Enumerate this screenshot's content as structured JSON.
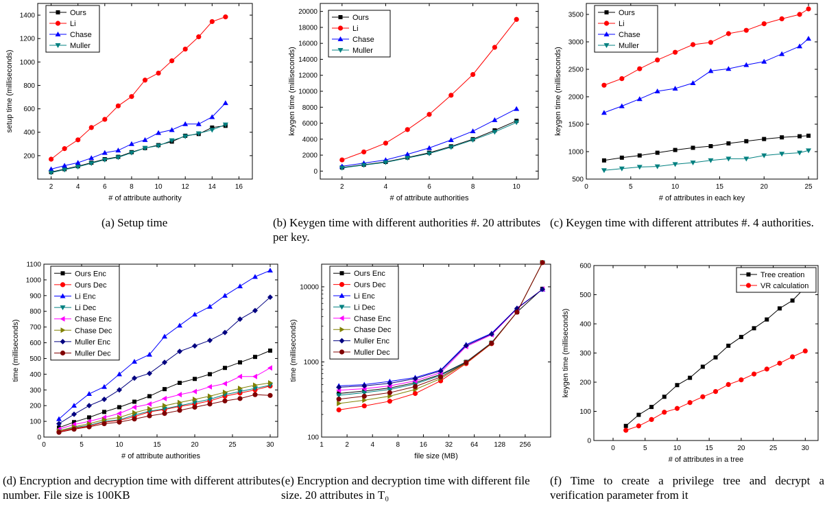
{
  "chart_data": [
    {
      "type": "line",
      "xlabel": "# of attribute authority",
      "ylabel": "setup time (milliseconds)",
      "xlim": [
        1,
        17
      ],
      "ylim": [
        0,
        1500
      ],
      "xticks": [
        2,
        4,
        6,
        8,
        10,
        12,
        14,
        16
      ],
      "yticks": [
        200,
        400,
        600,
        800,
        1000,
        1200,
        1400
      ],
      "legend_position": "top-left",
      "x": [
        2,
        3,
        4,
        5,
        6,
        7,
        8,
        9,
        10,
        11,
        12,
        13,
        14,
        15
      ],
      "series": [
        {
          "name": "Ours",
          "color": "#000000",
          "marker": "square",
          "values": [
            60,
            85,
            110,
            140,
            170,
            190,
            230,
            265,
            290,
            320,
            370,
            385,
            440,
            455
          ]
        },
        {
          "name": "Li",
          "color": "#ff0000",
          "marker": "circle",
          "values": [
            170,
            260,
            335,
            440,
            510,
            625,
            705,
            845,
            905,
            1010,
            1110,
            1215,
            1345,
            1385
          ]
        },
        {
          "name": "Chase",
          "color": "#0000ff",
          "marker": "triangle-up",
          "values": [
            85,
            115,
            140,
            180,
            225,
            245,
            300,
            335,
            395,
            420,
            470,
            470,
            530,
            650
          ]
        },
        {
          "name": "Muller",
          "color": "#008080",
          "marker": "triangle-down",
          "values": [
            55,
            80,
            105,
            135,
            165,
            185,
            225,
            265,
            285,
            330,
            365,
            390,
            420,
            465
          ]
        }
      ]
    },
    {
      "type": "line",
      "xlabel": "# of attribute authorities",
      "ylabel": "keygen time (milliseconds)",
      "xlim": [
        1,
        11
      ],
      "ylim": [
        -1000,
        21000
      ],
      "xticks": [
        2,
        4,
        6,
        8,
        10
      ],
      "yticks": [
        0,
        2000,
        4000,
        6000,
        8000,
        10000,
        12000,
        14000,
        16000,
        18000,
        20000
      ],
      "legend_position": "top-left",
      "x": [
        2,
        3,
        4,
        5,
        6,
        7,
        8,
        9,
        10
      ],
      "series": [
        {
          "name": "Ours",
          "color": "#000000",
          "marker": "square",
          "values": [
            450,
            800,
            1150,
            1700,
            2300,
            3100,
            4000,
            5100,
            6300
          ]
        },
        {
          "name": "Li",
          "color": "#ff0000",
          "marker": "circle",
          "values": [
            1400,
            2400,
            3500,
            5200,
            7100,
            9500,
            12100,
            15500,
            19000
          ]
        },
        {
          "name": "Chase",
          "color": "#0000ff",
          "marker": "triangle-up",
          "values": [
            600,
            1000,
            1400,
            2100,
            2900,
            3900,
            5000,
            6400,
            7800
          ]
        },
        {
          "name": "Muller",
          "color": "#008080",
          "marker": "triangle-down",
          "values": [
            400,
            750,
            1100,
            1650,
            2200,
            3000,
            3900,
            4900,
            6100
          ]
        }
      ]
    },
    {
      "type": "line",
      "xlabel": "# of attributes in each key",
      "ylabel": "keygen time (milliseconds)",
      "xlim": [
        0,
        26
      ],
      "ylim": [
        500,
        3700
      ],
      "xticks": [
        0,
        5,
        10,
        15,
        20,
        25
      ],
      "yticks": [
        500,
        1000,
        1500,
        2000,
        2500,
        3000,
        3500
      ],
      "legend_position": "top-left",
      "x": [
        2,
        4,
        6,
        8,
        10,
        12,
        14,
        16,
        18,
        20,
        22,
        24,
        25
      ],
      "series": [
        {
          "name": "Ours",
          "color": "#000000",
          "marker": "square",
          "values": [
            840,
            890,
            930,
            980,
            1030,
            1070,
            1100,
            1150,
            1190,
            1230,
            1260,
            1280,
            1290
          ]
        },
        {
          "name": "Li",
          "color": "#ff0000",
          "marker": "circle",
          "values": [
            2210,
            2330,
            2510,
            2670,
            2810,
            2950,
            2990,
            3150,
            3210,
            3330,
            3420,
            3500,
            3600
          ]
        },
        {
          "name": "Chase",
          "color": "#0000ff",
          "marker": "triangle-up",
          "values": [
            1710,
            1830,
            1960,
            2100,
            2150,
            2250,
            2470,
            2510,
            2580,
            2640,
            2780,
            2920,
            3060
          ]
        },
        {
          "name": "Muller",
          "color": "#008080",
          "marker": "triangle-down",
          "values": [
            660,
            690,
            720,
            730,
            770,
            800,
            840,
            870,
            870,
            930,
            960,
            980,
            1020
          ]
        }
      ]
    },
    {
      "type": "line",
      "xlabel": "# of attribute authorities",
      "ylabel": "time (milliseconds)",
      "xlim": [
        0,
        31
      ],
      "ylim": [
        0,
        1100
      ],
      "xticks": [
        0,
        5,
        10,
        15,
        20,
        25,
        30
      ],
      "yticks": [
        0,
        100,
        200,
        300,
        400,
        500,
        600,
        700,
        800,
        900,
        1000,
        1100
      ],
      "legend_position": "top-left",
      "x": [
        2,
        4,
        6,
        8,
        10,
        12,
        14,
        16,
        18,
        20,
        22,
        24,
        26,
        28,
        30
      ],
      "series": [
        {
          "name": "Ours Enc",
          "color": "#000000",
          "marker": "square",
          "values": [
            60,
            95,
            125,
            160,
            190,
            225,
            260,
            305,
            345,
            370,
            400,
            440,
            475,
            510,
            550
          ]
        },
        {
          "name": "Ours Dec",
          "color": "#ff0000",
          "marker": "circle",
          "values": [
            35,
            55,
            70,
            95,
            105,
            130,
            160,
            175,
            195,
            210,
            230,
            260,
            280,
            300,
            325
          ]
        },
        {
          "name": "Li Enc",
          "color": "#0000ff",
          "marker": "triangle-up",
          "values": [
            115,
            200,
            275,
            320,
            400,
            480,
            525,
            640,
            710,
            780,
            830,
            900,
            960,
            1020,
            1060
          ]
        },
        {
          "name": "Li Dec",
          "color": "#008080",
          "marker": "triangle-down",
          "values": [
            40,
            60,
            75,
            100,
            110,
            140,
            165,
            180,
            200,
            220,
            240,
            270,
            290,
            310,
            330
          ]
        },
        {
          "name": "Chase Enc",
          "color": "#ff00ff",
          "marker": "triangle-left",
          "values": [
            50,
            80,
            100,
            125,
            150,
            190,
            210,
            245,
            270,
            290,
            320,
            340,
            385,
            385,
            440
          ]
        },
        {
          "name": "Chase Dec",
          "color": "#808000",
          "marker": "triangle-right",
          "values": [
            40,
            65,
            85,
            110,
            125,
            155,
            180,
            200,
            220,
            240,
            260,
            285,
            310,
            330,
            345
          ]
        },
        {
          "name": "Muller Enc",
          "color": "#000080",
          "marker": "diamond",
          "values": [
            85,
            145,
            200,
            240,
            300,
            375,
            405,
            475,
            545,
            580,
            615,
            665,
            750,
            805,
            890
          ]
        },
        {
          "name": "Muller Dec",
          "color": "#800000",
          "marker": "circle",
          "values": [
            30,
            50,
            65,
            85,
            95,
            115,
            135,
            150,
            170,
            190,
            210,
            230,
            245,
            270,
            265
          ]
        }
      ]
    },
    {
      "type": "line",
      "scale": "log-log",
      "xlabel": "file size (MB)",
      "ylabel": "time (milliseconds)",
      "xlim": [
        1,
        512
      ],
      "ylim": [
        100,
        20000
      ],
      "xticks": [
        1,
        2,
        4,
        8,
        16,
        32,
        64,
        128,
        256
      ],
      "yticks": [
        100,
        1000,
        10000
      ],
      "legend_position": "top-left",
      "x": [
        1.6,
        3.2,
        6.4,
        12.8,
        25.6,
        51.2,
        102.4,
        204.8,
        409.6
      ],
      "series": [
        {
          "name": "Ours Enc",
          "color": "#000000",
          "marker": "square",
          "values": [
            380,
            410,
            450,
            530,
            680,
            1000,
            1800,
            4600,
            9400
          ]
        },
        {
          "name": "Ours Dec",
          "color": "#ff0000",
          "marker": "circle",
          "values": [
            230,
            260,
            300,
            380,
            560,
            950,
            1750,
            4600,
            21000
          ]
        },
        {
          "name": "Li Enc",
          "color": "#0000ff",
          "marker": "triangle-up",
          "values": [
            480,
            500,
            550,
            620,
            780,
            1700,
            2400,
            5200,
            9200
          ]
        },
        {
          "name": "Li Dec",
          "color": "#008080",
          "marker": "triangle-down",
          "values": [
            360,
            390,
            430,
            510,
            660,
            990,
            1780,
            4600,
            21000
          ]
        },
        {
          "name": "Chase Enc",
          "color": "#ff00ff",
          "marker": "triangle-left",
          "values": [
            420,
            440,
            480,
            560,
            720,
            1600,
            2300,
            5100,
            9300
          ]
        },
        {
          "name": "Chase Dec",
          "color": "#808000",
          "marker": "triangle-right",
          "values": [
            280,
            310,
            350,
            430,
            600,
            970,
            1760,
            4600,
            21000
          ]
        },
        {
          "name": "Muller Enc",
          "color": "#000080",
          "marker": "diamond",
          "values": [
            460,
            480,
            520,
            600,
            760,
            1650,
            2350,
            5150,
            9250
          ]
        },
        {
          "name": "Muller Dec",
          "color": "#800000",
          "marker": "circle",
          "values": [
            320,
            350,
            390,
            470,
            630,
            980,
            1770,
            4600,
            21000
          ]
        }
      ]
    },
    {
      "type": "line",
      "xlabel": "# of attributes in a tree",
      "ylabel": "keygen time (milliseconds)",
      "xlim": [
        -3,
        32
      ],
      "ylim": [
        0,
        600
      ],
      "xticks": [
        0,
        5,
        10,
        15,
        20,
        25,
        30
      ],
      "yticks": [
        0,
        100,
        200,
        300,
        400,
        500,
        600
      ],
      "legend_position": "top-right",
      "x": [
        2,
        4,
        6,
        8,
        10,
        12,
        14,
        16,
        18,
        20,
        22,
        24,
        26,
        28,
        30
      ],
      "series": [
        {
          "name": "Tree creation",
          "color": "#000000",
          "marker": "square",
          "values": [
            50,
            88,
            115,
            150,
            190,
            215,
            253,
            285,
            325,
            355,
            385,
            415,
            453,
            480,
            525
          ]
        },
        {
          "name": "VR calculation",
          "color": "#ff0000",
          "marker": "circle",
          "values": [
            35,
            50,
            72,
            97,
            110,
            130,
            150,
            168,
            192,
            208,
            228,
            245,
            265,
            287,
            307
          ]
        }
      ]
    }
  ],
  "captions": {
    "a": "(a) Setup time",
    "b": "(b) Keygen time with different authorities #. 20 attributes per key.",
    "c": "(c) Keygen time with different attributes #. 4 authorities.",
    "d": "(d) Encryption and decryption time with different attributes number. File size is 100KB",
    "e": "(e) Encryption and decryption time with different file size. 20 attributes in T₀",
    "f": "(f) Time to create a privilege tree and decrypt a verification parameter from it"
  }
}
